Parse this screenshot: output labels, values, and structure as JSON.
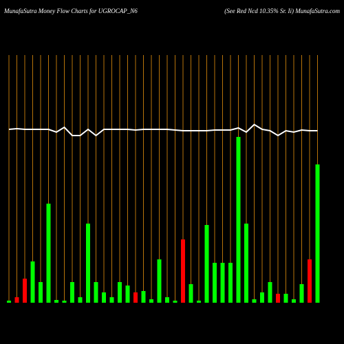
{
  "chart_data": {
    "type": "bar",
    "title": "MunafaSutra  Money Flow  Charts for UGROCAP_N6",
    "subtitle": "(See Red Ncd 10.35% Sr. Ii) MunafaSutra.com",
    "ylim": [
      0,
      300
    ],
    "bars": {
      "values": [
        3,
        8,
        35,
        60,
        30,
        144,
        4,
        3,
        30,
        8,
        115,
        30,
        15,
        8,
        30,
        25,
        15,
        17,
        5,
        63,
        8,
        3,
        92,
        27,
        3,
        113,
        58,
        58,
        58,
        241,
        115,
        5,
        15,
        30,
        13,
        13,
        5,
        27,
        63,
        201
      ],
      "colors": [
        "#00ff00",
        "#ff0000",
        "#ff0000",
        "#00ff00",
        "#00ff00",
        "#00ff00",
        "#00ff00",
        "#00ff00",
        "#00ff00",
        "#00ff00",
        "#00ff00",
        "#00ff00",
        "#00ff00",
        "#00ff00",
        "#00ff00",
        "#00ff00",
        "#ff0000",
        "#00ff00",
        "#00ff00",
        "#00ff00",
        "#00ff00",
        "#00ff00",
        "#ff0000",
        "#00ff00",
        "#00ff00",
        "#00ff00",
        "#00ff00",
        "#00ff00",
        "#00ff00",
        "#00ff00",
        "#00ff00",
        "#00ff00",
        "#00ff00",
        "#00ff00",
        "#ff0000",
        "#00ff00",
        "#00ff00",
        "#00ff00",
        "#ff0000",
        "#00ff00"
      ]
    },
    "line": {
      "color": "#ffffff",
      "values": [
        252,
        253,
        252,
        252,
        252,
        252,
        248,
        255,
        243,
        243,
        252,
        243,
        252,
        252,
        252,
        252,
        251,
        252,
        252,
        252,
        252,
        251,
        250,
        250,
        250,
        250,
        251,
        251,
        251,
        254,
        248,
        259,
        252,
        250,
        243,
        250,
        248,
        251,
        250,
        250
      ]
    }
  }
}
